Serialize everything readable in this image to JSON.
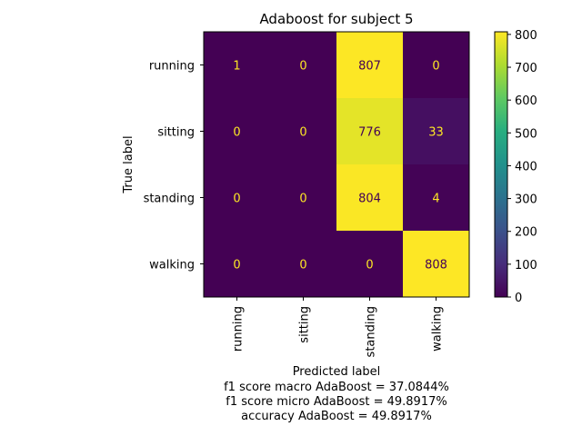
{
  "chart_data": {
    "type": "heatmap",
    "title": "Adaboost for subject 5",
    "xlabel": "Predicted label",
    "ylabel": "True label",
    "x_categories": [
      "running",
      "sitting",
      "standing",
      "walking"
    ],
    "y_categories": [
      "running",
      "sitting",
      "standing",
      "walking"
    ],
    "matrix": [
      [
        1,
        0,
        807,
        0
      ],
      [
        0,
        0,
        776,
        33
      ],
      [
        0,
        0,
        804,
        4
      ],
      [
        0,
        0,
        0,
        808
      ]
    ],
    "colormap": "viridis",
    "colorbar": {
      "range": [
        0,
        808
      ],
      "ticks": [
        0,
        100,
        200,
        300,
        400,
        500,
        600,
        700,
        800
      ]
    },
    "footnotes": [
      "f1 score macro AdaBoost = 37.0844%",
      "f1 score micro AdaBoost = 49.8917%",
      "accuracy AdaBoost = 49.8917%"
    ]
  }
}
